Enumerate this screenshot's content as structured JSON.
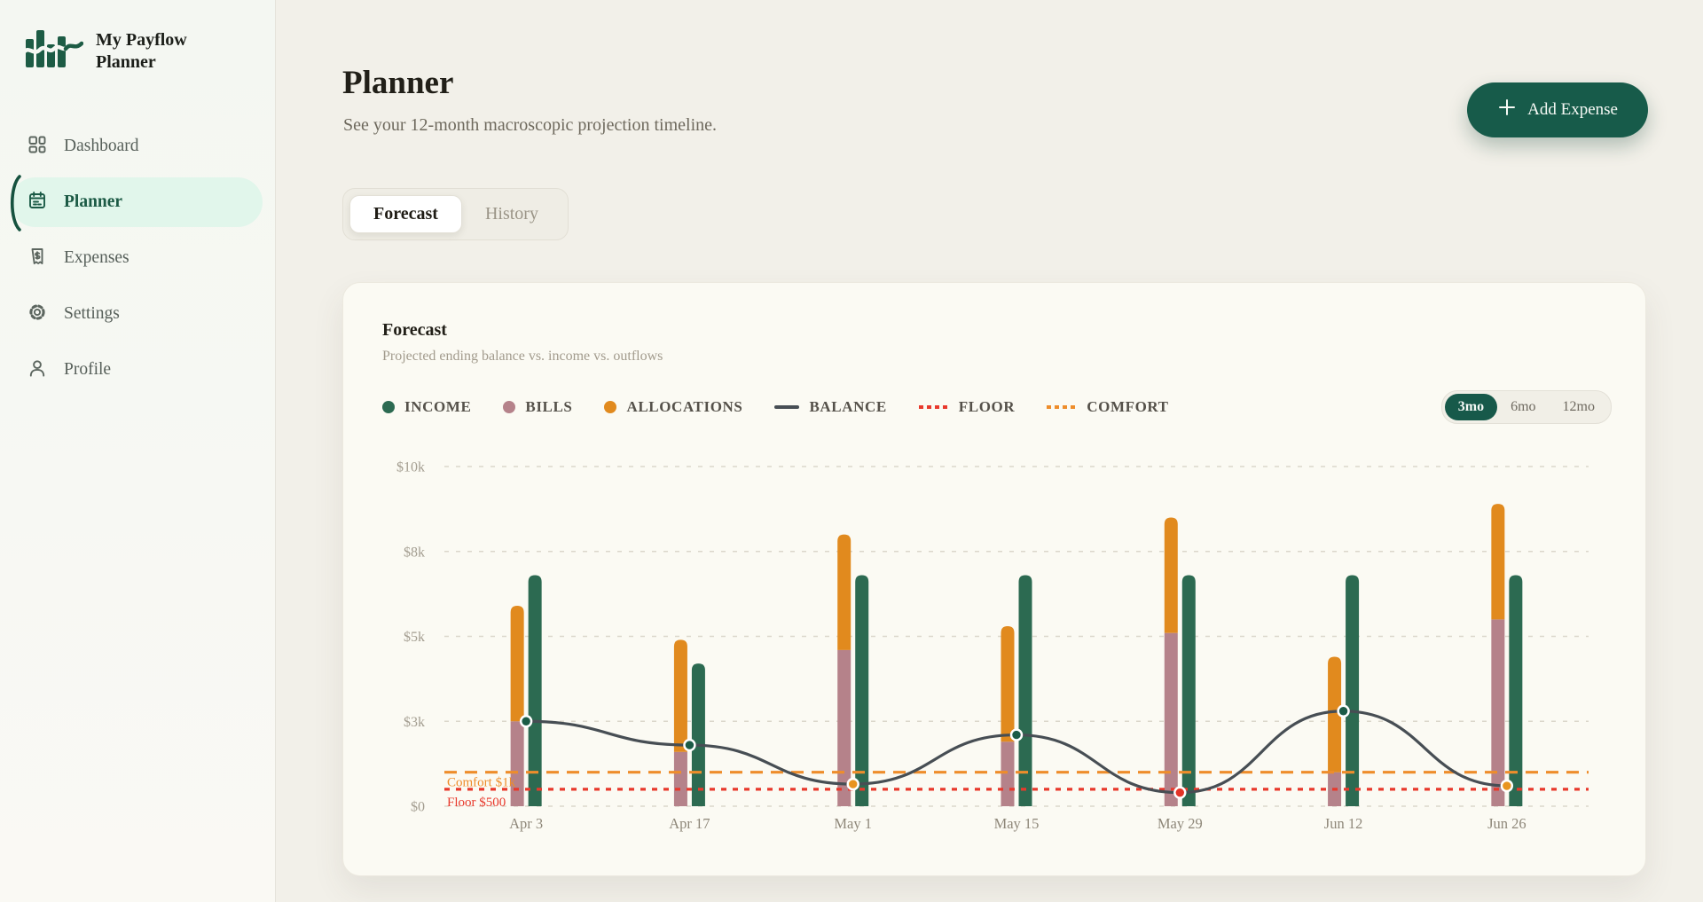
{
  "app": {
    "title": "My Payflow Planner"
  },
  "sidebar": {
    "items": [
      {
        "label": "Dashboard",
        "icon": "dashboard-grid-icon",
        "active": false
      },
      {
        "label": "Planner",
        "icon": "calendar-icon",
        "active": true
      },
      {
        "label": "Expenses",
        "icon": "receipt-dollar-icon",
        "active": false
      },
      {
        "label": "Settings",
        "icon": "gear-icon",
        "active": false
      },
      {
        "label": "Profile",
        "icon": "person-icon",
        "active": false
      }
    ]
  },
  "header": {
    "title": "Planner",
    "subtitle": "See your 12-month macroscopic projection timeline.",
    "add_button_label": "Add Expense"
  },
  "tabs": [
    {
      "label": "Forecast",
      "active": true
    },
    {
      "label": "History",
      "active": false
    }
  ],
  "card": {
    "title": "Forecast",
    "subtitle": "Projected ending balance vs. income vs. outflows"
  },
  "legend": [
    {
      "label": "INCOME",
      "marker": "dot",
      "color": "#2C6A51"
    },
    {
      "label": "BILLS",
      "marker": "dot",
      "color": "#B5828A"
    },
    {
      "label": "ALLOCATIONS",
      "marker": "dot",
      "color": "#E18A1E"
    },
    {
      "label": "BALANCE",
      "marker": "line",
      "color": "#474E54"
    },
    {
      "label": "FLOOR",
      "marker": "dashed-line",
      "color": "#E8392C"
    },
    {
      "label": "COMFORT",
      "marker": "dashed-line",
      "color": "#EE8D2B"
    }
  ],
  "range_toggle": [
    {
      "label": "3mo",
      "active": true
    },
    {
      "label": "6mo",
      "active": false
    },
    {
      "label": "12mo",
      "active": false
    }
  ],
  "chart_data": {
    "type": "bar",
    "subtype": "grouped-bars-with-line",
    "categories": [
      "Apr 3",
      "Apr 17",
      "May 1",
      "May 15",
      "May 29",
      "Jun 12",
      "Jun 26"
    ],
    "series": [
      {
        "name": "INCOME",
        "type": "bar",
        "color": "#2C6A51",
        "values": [
          6800,
          4200,
          6800,
          6800,
          6800,
          6800,
          6800
        ]
      },
      {
        "name": "BILLS",
        "type": "bar",
        "stack": "outflows",
        "color": "#B5828A",
        "values": [
          2500,
          1600,
          4600,
          1900,
          5100,
          1000,
          5500
        ]
      },
      {
        "name": "ALLOCATIONS",
        "type": "bar",
        "stack": "outflows",
        "color": "#E18A1E",
        "values": [
          3400,
          3300,
          3400,
          3400,
          3400,
          3400,
          3400
        ]
      },
      {
        "name": "BALANCE",
        "type": "line",
        "color": "#474E54",
        "values": [
          2500,
          1800,
          650,
          2100,
          400,
          2800,
          600
        ],
        "point_colors": [
          "#1B5B46",
          "#1B5B46",
          "#E8941F",
          "#1B5B46",
          "#E23327",
          "#1B5B46",
          "#E8941F"
        ]
      }
    ],
    "reference_lines": [
      {
        "name": "COMFORT",
        "label": "Comfort $1k",
        "value": 1000,
        "color": "#EE8D2B",
        "dash": "long"
      },
      {
        "name": "FLOOR",
        "label": "Floor $500",
        "value": 500,
        "color": "#E8392C",
        "dash": "short"
      }
    ],
    "y_ticks": [
      {
        "label": "$0",
        "value": 0
      },
      {
        "label": "$3k",
        "value": 2500
      },
      {
        "label": "$5k",
        "value": 5000
      },
      {
        "label": "$8k",
        "value": 7500
      },
      {
        "label": "$10k",
        "value": 10000
      }
    ],
    "ylim": [
      0,
      10000
    ],
    "grid": "horizontal-dashed",
    "legend_position": "top-left"
  },
  "colors": {
    "page_bg": "#F2F0E9",
    "sidebar_bg": "#F5F7F2",
    "card_bg": "#FBFAF3",
    "brand_green": "#175B4A",
    "active_mint": "#E1F6EB",
    "income_green": "#2C6A51",
    "bills_mauve": "#B5828A",
    "allocations_orange": "#E18A1E",
    "balance_line": "#474E54",
    "floor_red": "#E8392C",
    "comfort_orange": "#EE8D2B",
    "grid_line": "#DBD7CB",
    "axis_text": "#A39D90"
  }
}
